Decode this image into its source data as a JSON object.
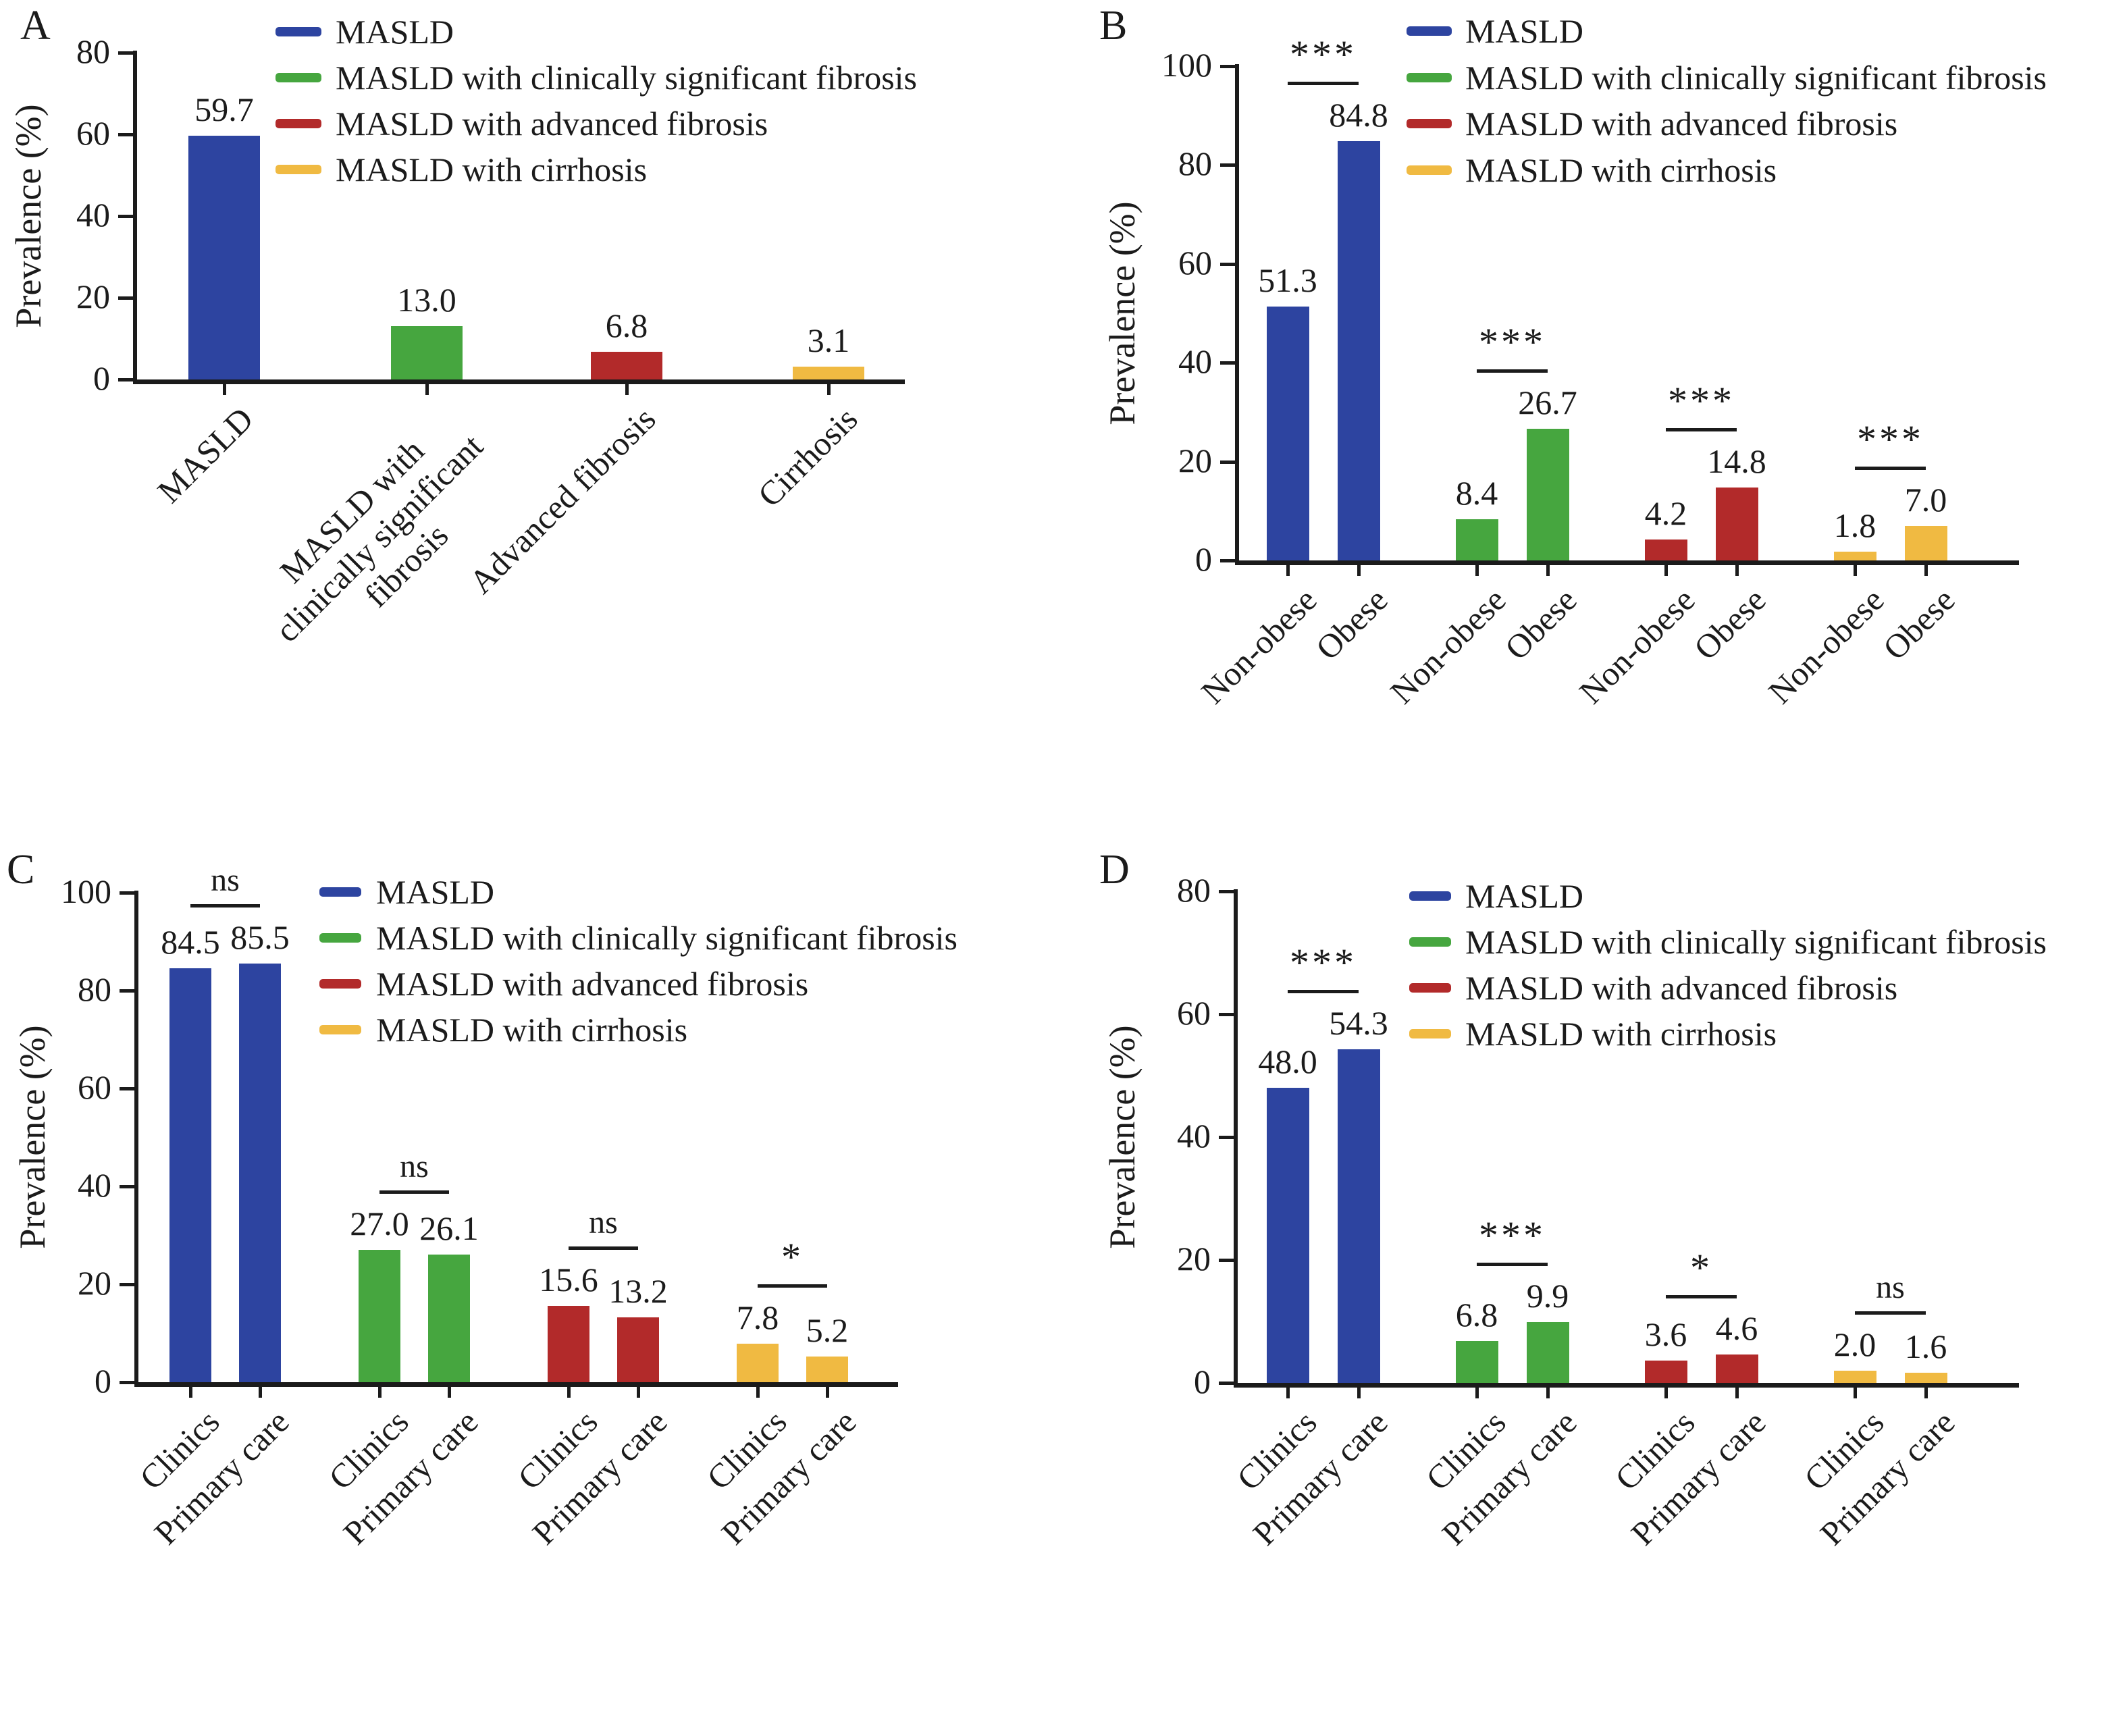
{
  "figure": {
    "background": "#ffffff",
    "text_color": "#1b1b1b",
    "colors": {
      "masld": "#2d44a0",
      "fibrosis": "#46a63f",
      "advanced": "#b22a2a",
      "cirrhosis": "#f0ba42"
    },
    "color_keys": [
      "masld",
      "fibrosis",
      "advanced",
      "cirrhosis"
    ],
    "legend": [
      "MASLD",
      "MASLD with clinically significant fibrosis",
      "MASLD with advanced fibrosis",
      "MASLD with cirrhosis"
    ]
  },
  "chart_data": [
    {
      "id": "A",
      "type": "bar",
      "ylabel": "Prevalence (%)",
      "ylim": [
        0,
        80
      ],
      "yticks": [
        0,
        20,
        40,
        60,
        80
      ],
      "legend_position": "top-right",
      "categories": [
        "MASLD",
        "MASLD with\nclinically significant\nfibrosis",
        "Advanced fibrosis",
        "Cirrhosis"
      ],
      "values": [
        "59.7",
        "13.0",
        "6.8",
        "3.1"
      ],
      "bar_color_keys": [
        "masld",
        "fibrosis",
        "advanced",
        "cirrhosis"
      ],
      "significance": []
    },
    {
      "id": "B",
      "type": "bar",
      "ylabel": "Prevalence (%)",
      "ylim": [
        0,
        100
      ],
      "yticks": [
        0,
        20,
        40,
        60,
        80,
        100
      ],
      "legend_position": "top-right",
      "categories": [
        "Non-obese",
        "Obese",
        "Non-obese",
        "Obese",
        "Non-obese",
        "Obese",
        "Non-obese",
        "Obese"
      ],
      "values": [
        "51.3",
        "84.8",
        "8.4",
        "26.7",
        "4.2",
        "14.8",
        "1.8",
        "7.0"
      ],
      "bar_color_keys": [
        "masld",
        "masld",
        "fibrosis",
        "fibrosis",
        "advanced",
        "advanced",
        "cirrhosis",
        "cirrhosis"
      ],
      "significance": [
        {
          "bars": [
            0,
            1
          ],
          "label": "***"
        },
        {
          "bars": [
            2,
            3
          ],
          "label": "***"
        },
        {
          "bars": [
            4,
            5
          ],
          "label": "***"
        },
        {
          "bars": [
            6,
            7
          ],
          "label": "***"
        }
      ]
    },
    {
      "id": "C",
      "type": "bar",
      "ylabel": "Prevalence (%)",
      "ylim": [
        0,
        100
      ],
      "yticks": [
        0,
        20,
        40,
        60,
        80,
        100
      ],
      "legend_position": "top-right",
      "categories": [
        "Clinics",
        "Primary care",
        "Clinics",
        "Primary care",
        "Clinics",
        "Primary care",
        "Clinics",
        "Primary care"
      ],
      "values": [
        "84.5",
        "85.5",
        "27.0",
        "26.1",
        "15.6",
        "13.2",
        "7.8",
        "5.2"
      ],
      "bar_color_keys": [
        "masld",
        "masld",
        "fibrosis",
        "fibrosis",
        "advanced",
        "advanced",
        "cirrhosis",
        "cirrhosis"
      ],
      "significance": [
        {
          "bars": [
            0,
            1
          ],
          "label": "ns"
        },
        {
          "bars": [
            2,
            3
          ],
          "label": "ns"
        },
        {
          "bars": [
            4,
            5
          ],
          "label": "ns"
        },
        {
          "bars": [
            6,
            7
          ],
          "label": "*"
        }
      ]
    },
    {
      "id": "D",
      "type": "bar",
      "ylabel": "Prevalence (%)",
      "ylim": [
        0,
        80
      ],
      "yticks": [
        0,
        20,
        40,
        60,
        80
      ],
      "legend_position": "top-right",
      "categories": [
        "Clinics",
        "Primary care",
        "Clinics",
        "Primary care",
        "Clinics",
        "Primary care",
        "Clinics",
        "Primary care"
      ],
      "values": [
        "48.0",
        "54.3",
        "6.8",
        "9.9",
        "3.6",
        "4.6",
        "2.0",
        "1.6"
      ],
      "bar_color_keys": [
        "masld",
        "masld",
        "fibrosis",
        "fibrosis",
        "advanced",
        "advanced",
        "cirrhosis",
        "cirrhosis"
      ],
      "significance": [
        {
          "bars": [
            0,
            1
          ],
          "label": "***"
        },
        {
          "bars": [
            2,
            3
          ],
          "label": "***"
        },
        {
          "bars": [
            4,
            5
          ],
          "label": "*"
        },
        {
          "bars": [
            6,
            7
          ],
          "label": "ns"
        }
      ]
    }
  ]
}
